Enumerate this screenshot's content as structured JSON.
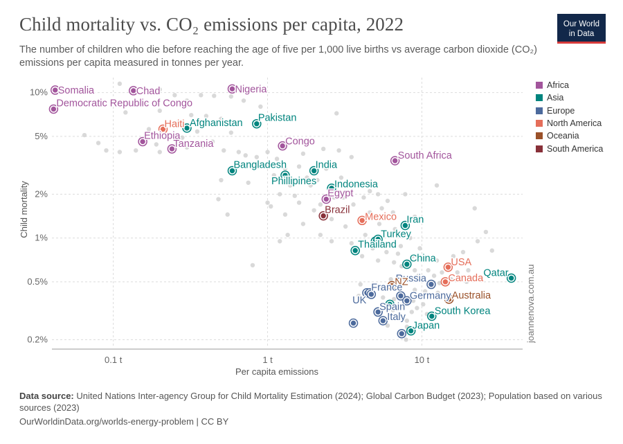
{
  "page": {
    "title": "Child mortality vs. CO₂ emissions per capita, 2022",
    "subtitle": "The number of children who die before reaching the age of five per 1,000 live births vs average carbon dioxide (CO₂) emissions per capita measured in tonnes per year.",
    "logo_line1": "Our World",
    "logo_line2": "in Data",
    "watermark": "joannenova.com.au",
    "source_label": "Data source:",
    "source_text": " United Nations Inter-agency Group for Child Mortality Estimation (2024); Global Carbon Budget (2023); Population based on various sources (2023)",
    "url_text": "OurWorldinData.org/worlds-energy-problem",
    "license_text": " | CC BY"
  },
  "legend": [
    {
      "name": "Africa",
      "color": "#a2559c"
    },
    {
      "name": "Asia",
      "color": "#00847e"
    },
    {
      "name": "Europe",
      "color": "#4c6a9c"
    },
    {
      "name": "North America",
      "color": "#e56e5a"
    },
    {
      "name": "Oceania",
      "color": "#9a5129"
    },
    {
      "name": "South America",
      "color": "#883039"
    }
  ],
  "chart_data": {
    "type": "scatter",
    "xlabel": "Per capita emissions",
    "ylabel": "Child mortality",
    "xscale": "log",
    "yscale": "log",
    "xlim": [
      0.04,
      45
    ],
    "ylim": [
      0.18,
      12
    ],
    "x_ticks": [
      {
        "value": 0.1,
        "label": "0.1 t"
      },
      {
        "value": 1,
        "label": "1 t"
      },
      {
        "value": 10,
        "label": "10 t"
      }
    ],
    "y_ticks": [
      {
        "value": 0.2,
        "label": "0.2%"
      },
      {
        "value": 0.5,
        "label": "0.5%"
      },
      {
        "value": 1,
        "label": "1%"
      },
      {
        "value": 2,
        "label": "2%"
      },
      {
        "value": 5,
        "label": "5%"
      },
      {
        "value": 10,
        "label": "10%"
      }
    ],
    "grid": true,
    "legend_position": "right",
    "highlighted": [
      {
        "label": "Somalia",
        "region": "Africa",
        "x": 0.042,
        "y": 10.4
      },
      {
        "label": "Chad",
        "region": "Africa",
        "x": 0.135,
        "y": 10.3
      },
      {
        "label": "Nigeria",
        "region": "Africa",
        "x": 0.59,
        "y": 10.6
      },
      {
        "label": "Democratic Republic of Congo",
        "region": "Africa",
        "x": 0.041,
        "y": 7.7
      },
      {
        "label": "Haiti",
        "region": "North America",
        "x": 0.21,
        "y": 5.6
      },
      {
        "label": "Afghanistan",
        "region": "Asia",
        "x": 0.3,
        "y": 5.7
      },
      {
        "label": "Pakistan",
        "region": "Asia",
        "x": 0.85,
        "y": 6.1
      },
      {
        "label": "Ethiopia",
        "region": "Africa",
        "x": 0.155,
        "y": 4.6
      },
      {
        "label": "Tanzania",
        "region": "Africa",
        "x": 0.24,
        "y": 4.1
      },
      {
        "label": "Congo",
        "region": "Africa",
        "x": 1.25,
        "y": 4.3
      },
      {
        "label": "South Africa",
        "region": "Africa",
        "x": 6.7,
        "y": 3.4
      },
      {
        "label": "Bangladesh",
        "region": "Asia",
        "x": 0.59,
        "y": 2.9
      },
      {
        "label": "India",
        "region": "Asia",
        "x": 2.0,
        "y": 2.9
      },
      {
        "label": "Phillipines",
        "region": "Asia",
        "x": 1.3,
        "y": 2.7
      },
      {
        "label": "Indonesia",
        "region": "Asia",
        "x": 2.6,
        "y": 2.2
      },
      {
        "label": "Egypt",
        "region": "Africa",
        "x": 2.4,
        "y": 1.85
      },
      {
        "label": "Brazil",
        "region": "South America",
        "x": 2.3,
        "y": 1.42
      },
      {
        "label": "Mexico",
        "region": "North America",
        "x": 4.1,
        "y": 1.32
      },
      {
        "label": "Iran",
        "region": "Asia",
        "x": 7.8,
        "y": 1.22
      },
      {
        "label": "Turkey",
        "region": "Asia",
        "x": 5.2,
        "y": 0.98
      },
      {
        "label": "Thailand",
        "region": "Asia",
        "x": 3.7,
        "y": 0.82
      },
      {
        "label": "China",
        "region": "Asia",
        "x": 8.0,
        "y": 0.66
      },
      {
        "label": "USA",
        "region": "North America",
        "x": 14.8,
        "y": 0.63
      },
      {
        "label": "Qatar",
        "region": "Asia",
        "x": 38.0,
        "y": 0.53
      },
      {
        "label": "Canada",
        "region": "North America",
        "x": 14.2,
        "y": 0.5
      },
      {
        "label": "Russia",
        "region": "Europe",
        "x": 11.5,
        "y": 0.48
      },
      {
        "label": "NZ",
        "region": "Oceania",
        "x": 6.4,
        "y": 0.47
      },
      {
        "label": "France",
        "region": "Europe",
        "x": 4.6,
        "y": 0.42
      },
      {
        "label": "Australia",
        "region": "Oceania",
        "x": 15.0,
        "y": 0.38
      },
      {
        "label": "Germany",
        "region": "Europe",
        "x": 8.0,
        "y": 0.37
      },
      {
        "label": "UK",
        "region": "Europe",
        "x": 4.7,
        "y": 0.41
      },
      {
        "label": "Spain",
        "region": "Europe",
        "x": 5.2,
        "y": 0.31
      },
      {
        "label": "South Korea",
        "region": "Asia",
        "x": 11.6,
        "y": 0.29
      },
      {
        "label": "Italy",
        "region": "Europe",
        "x": 5.6,
        "y": 0.27
      },
      {
        "label": "Japan",
        "region": "Asia",
        "x": 8.5,
        "y": 0.23
      }
    ],
    "unlabeled_highlighted": [
      {
        "region": "Europe",
        "x": 3.6,
        "y": 0.26
      },
      {
        "region": "Europe",
        "x": 7.4,
        "y": 0.22
      },
      {
        "region": "Asia",
        "x": 6.2,
        "y": 0.35
      },
      {
        "region": "Europe",
        "x": 4.4,
        "y": 0.42
      },
      {
        "region": "Europe",
        "x": 7.3,
        "y": 0.4
      },
      {
        "region": "Europe",
        "x": 5.2,
        "y": 0.31
      },
      {
        "region": "Asia",
        "x": 5.0,
        "y": 0.95
      }
    ],
    "background_points": [
      [
        0.11,
        11.5
      ],
      [
        0.065,
        10.5
      ],
      [
        0.2,
        10.5
      ],
      [
        0.25,
        9.6
      ],
      [
        0.37,
        9.6
      ],
      [
        0.45,
        9.5
      ],
      [
        0.58,
        9.4
      ],
      [
        0.3,
        8.8
      ],
      [
        0.7,
        8.8
      ],
      [
        0.9,
        8.0
      ],
      [
        0.16,
        8.5
      ],
      [
        0.12,
        7.3
      ],
      [
        0.2,
        7.5
      ],
      [
        0.32,
        7.0
      ],
      [
        0.4,
        6.9
      ],
      [
        0.5,
        6.6
      ],
      [
        0.6,
        6.3
      ],
      [
        0.26,
        6.2
      ],
      [
        2.8,
        7.2
      ],
      [
        0.17,
        5.6
      ],
      [
        0.35,
        5.4
      ],
      [
        0.58,
        5.3
      ],
      [
        0.065,
        5.1
      ],
      [
        0.28,
        4.9
      ],
      [
        0.44,
        4.6
      ],
      [
        0.08,
        4.5
      ],
      [
        0.19,
        4.4
      ],
      [
        0.3,
        4.2
      ],
      [
        0.38,
        4.3
      ],
      [
        0.09,
        4.0
      ],
      [
        0.11,
        3.9
      ],
      [
        0.14,
        4.0
      ],
      [
        0.2,
        3.9
      ],
      [
        0.52,
        4.0
      ],
      [
        0.65,
        3.9
      ],
      [
        0.72,
        3.7
      ],
      [
        0.85,
        3.6
      ],
      [
        1.0,
        3.9
      ],
      [
        1.15,
        3.5
      ],
      [
        1.7,
        3.8
      ],
      [
        2.3,
        4.1
      ],
      [
        2.9,
        4.0
      ],
      [
        3.5,
        3.6
      ],
      [
        0.9,
        3.2
      ],
      [
        1.3,
        3.0
      ],
      [
        1.6,
        3.1
      ],
      [
        2.4,
        3.0
      ],
      [
        1.1,
        2.7
      ],
      [
        1.8,
        2.6
      ],
      [
        2.1,
        2.5
      ],
      [
        3.0,
        2.6
      ],
      [
        0.5,
        2.5
      ],
      [
        0.75,
        2.4
      ],
      [
        1.4,
        2.3
      ],
      [
        1.9,
        2.3
      ],
      [
        2.8,
        2.3
      ],
      [
        3.4,
        2.3
      ],
      [
        4.6,
        2.1
      ],
      [
        5.2,
        2.0
      ],
      [
        1.2,
        2.0
      ],
      [
        1.5,
        1.95
      ],
      [
        2.7,
        1.9
      ],
      [
        3.1,
        1.9
      ],
      [
        4.2,
        1.9
      ],
      [
        6.0,
        1.8
      ],
      [
        7.8,
        2.0
      ],
      [
        12.5,
        2.3
      ],
      [
        0.48,
        1.85
      ],
      [
        1.0,
        1.75
      ],
      [
        1.6,
        1.75
      ],
      [
        2.2,
        1.7
      ],
      [
        3.6,
        1.7
      ],
      [
        5.5,
        1.6
      ],
      [
        1.05,
        1.65
      ],
      [
        2.0,
        1.55
      ],
      [
        3.3,
        1.55
      ],
      [
        4.6,
        1.5
      ],
      [
        6.5,
        1.5
      ],
      [
        9.0,
        1.4
      ],
      [
        0.55,
        1.45
      ],
      [
        1.3,
        1.45
      ],
      [
        2.6,
        1.35
      ],
      [
        4.0,
        1.3
      ],
      [
        5.3,
        1.25
      ],
      [
        1.7,
        1.25
      ],
      [
        3.2,
        1.2
      ],
      [
        6.7,
        1.15
      ],
      [
        1.35,
        1.05
      ],
      [
        2.2,
        1.05
      ],
      [
        4.3,
        1.05
      ],
      [
        6.2,
        1.05
      ],
      [
        8.4,
        1.0
      ],
      [
        1.2,
        0.95
      ],
      [
        2.6,
        0.95
      ],
      [
        3.5,
        0.92
      ],
      [
        6.0,
        0.9
      ],
      [
        7.3,
        0.88
      ],
      [
        9.7,
        0.85
      ],
      [
        4.8,
        0.85
      ],
      [
        5.9,
        0.8
      ],
      [
        7.0,
        0.78
      ],
      [
        8.7,
        0.75
      ],
      [
        10.6,
        0.73
      ],
      [
        4.1,
        0.75
      ],
      [
        5.2,
        0.7
      ],
      [
        6.6,
        0.68
      ],
      [
        7.4,
        0.64
      ],
      [
        12.5,
        0.7
      ],
      [
        16.0,
        0.75
      ],
      [
        18.5,
        0.8
      ],
      [
        23.0,
        0.95
      ],
      [
        26.0,
        1.1
      ],
      [
        28.5,
        0.82
      ],
      [
        22.0,
        1.6
      ],
      [
        0.8,
        0.65
      ],
      [
        9.0,
        0.6
      ],
      [
        11.0,
        0.6
      ],
      [
        13.5,
        0.58
      ],
      [
        17.0,
        0.58
      ],
      [
        20.0,
        0.6
      ],
      [
        9.5,
        0.55
      ],
      [
        12.0,
        0.55
      ],
      [
        15.5,
        0.52
      ],
      [
        6.3,
        0.52
      ],
      [
        7.5,
        0.5
      ],
      [
        13.0,
        0.49
      ],
      [
        19.5,
        0.5
      ],
      [
        4.0,
        0.48
      ],
      [
        5.3,
        0.46
      ],
      [
        6.9,
        0.45
      ],
      [
        9.0,
        0.44
      ],
      [
        10.5,
        0.43
      ],
      [
        12.7,
        0.42
      ],
      [
        3.9,
        0.4
      ],
      [
        5.6,
        0.39
      ],
      [
        6.6,
        0.38
      ],
      [
        8.8,
        0.37
      ],
      [
        10.2,
        0.35
      ],
      [
        7.6,
        0.34
      ],
      [
        9.3,
        0.33
      ],
      [
        6.5,
        0.32
      ],
      [
        8.6,
        0.31
      ],
      [
        10.8,
        0.3
      ],
      [
        7.2,
        0.29
      ],
      [
        8.0,
        0.27
      ],
      [
        5.7,
        0.265
      ],
      [
        6.0,
        0.25
      ],
      [
        8.0,
        0.245
      ],
      [
        7.9,
        0.2
      ]
    ]
  }
}
